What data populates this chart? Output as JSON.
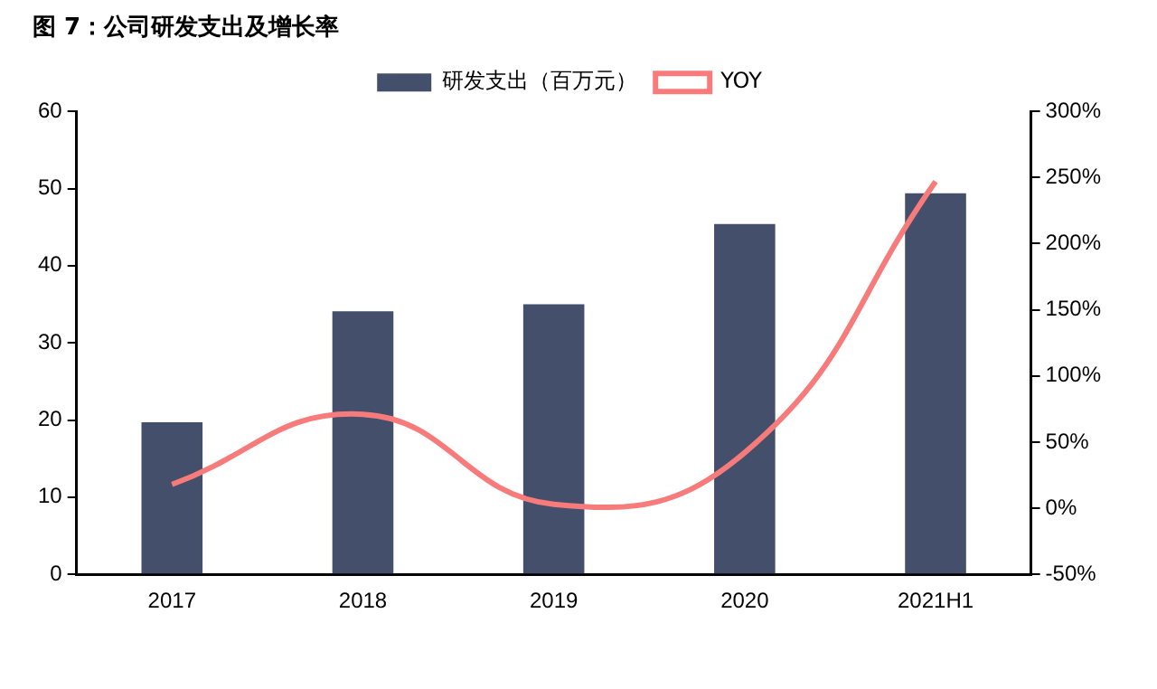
{
  "chart_data": {
    "type": "bar",
    "title": "图 7：公司研发支出及增长率",
    "categories": [
      "2017",
      "2018",
      "2019",
      "2020",
      "2021H1"
    ],
    "series": [
      {
        "name": "研发支出（百万元）",
        "color": "#444f6c",
        "values": [
          19.7,
          34.1,
          35.0,
          45.4,
          49.4
        ]
      },
      {
        "name": "YOY",
        "type": "line",
        "axis": "y2",
        "color": "#f77b7b",
        "values": [
          18,
          71,
          3,
          42,
          247
        ]
      }
    ],
    "ylim": [
      0,
      60
    ],
    "yticks": [
      0,
      10,
      20,
      30,
      40,
      50,
      60
    ],
    "y2lim": [
      -50,
      300
    ],
    "y2ticks": [
      {
        "value": -50,
        "label": "-50%"
      },
      {
        "value": 0,
        "label": "0%"
      },
      {
        "value": 50,
        "label": "50%"
      },
      {
        "value": 100,
        "label": "100%"
      },
      {
        "value": 150,
        "label": "150%"
      },
      {
        "value": 200,
        "label": "200%"
      },
      {
        "value": 250,
        "label": "250%"
      },
      {
        "value": 300,
        "label": "300%"
      }
    ],
    "legend": "top",
    "grid": false,
    "marker": "none"
  }
}
